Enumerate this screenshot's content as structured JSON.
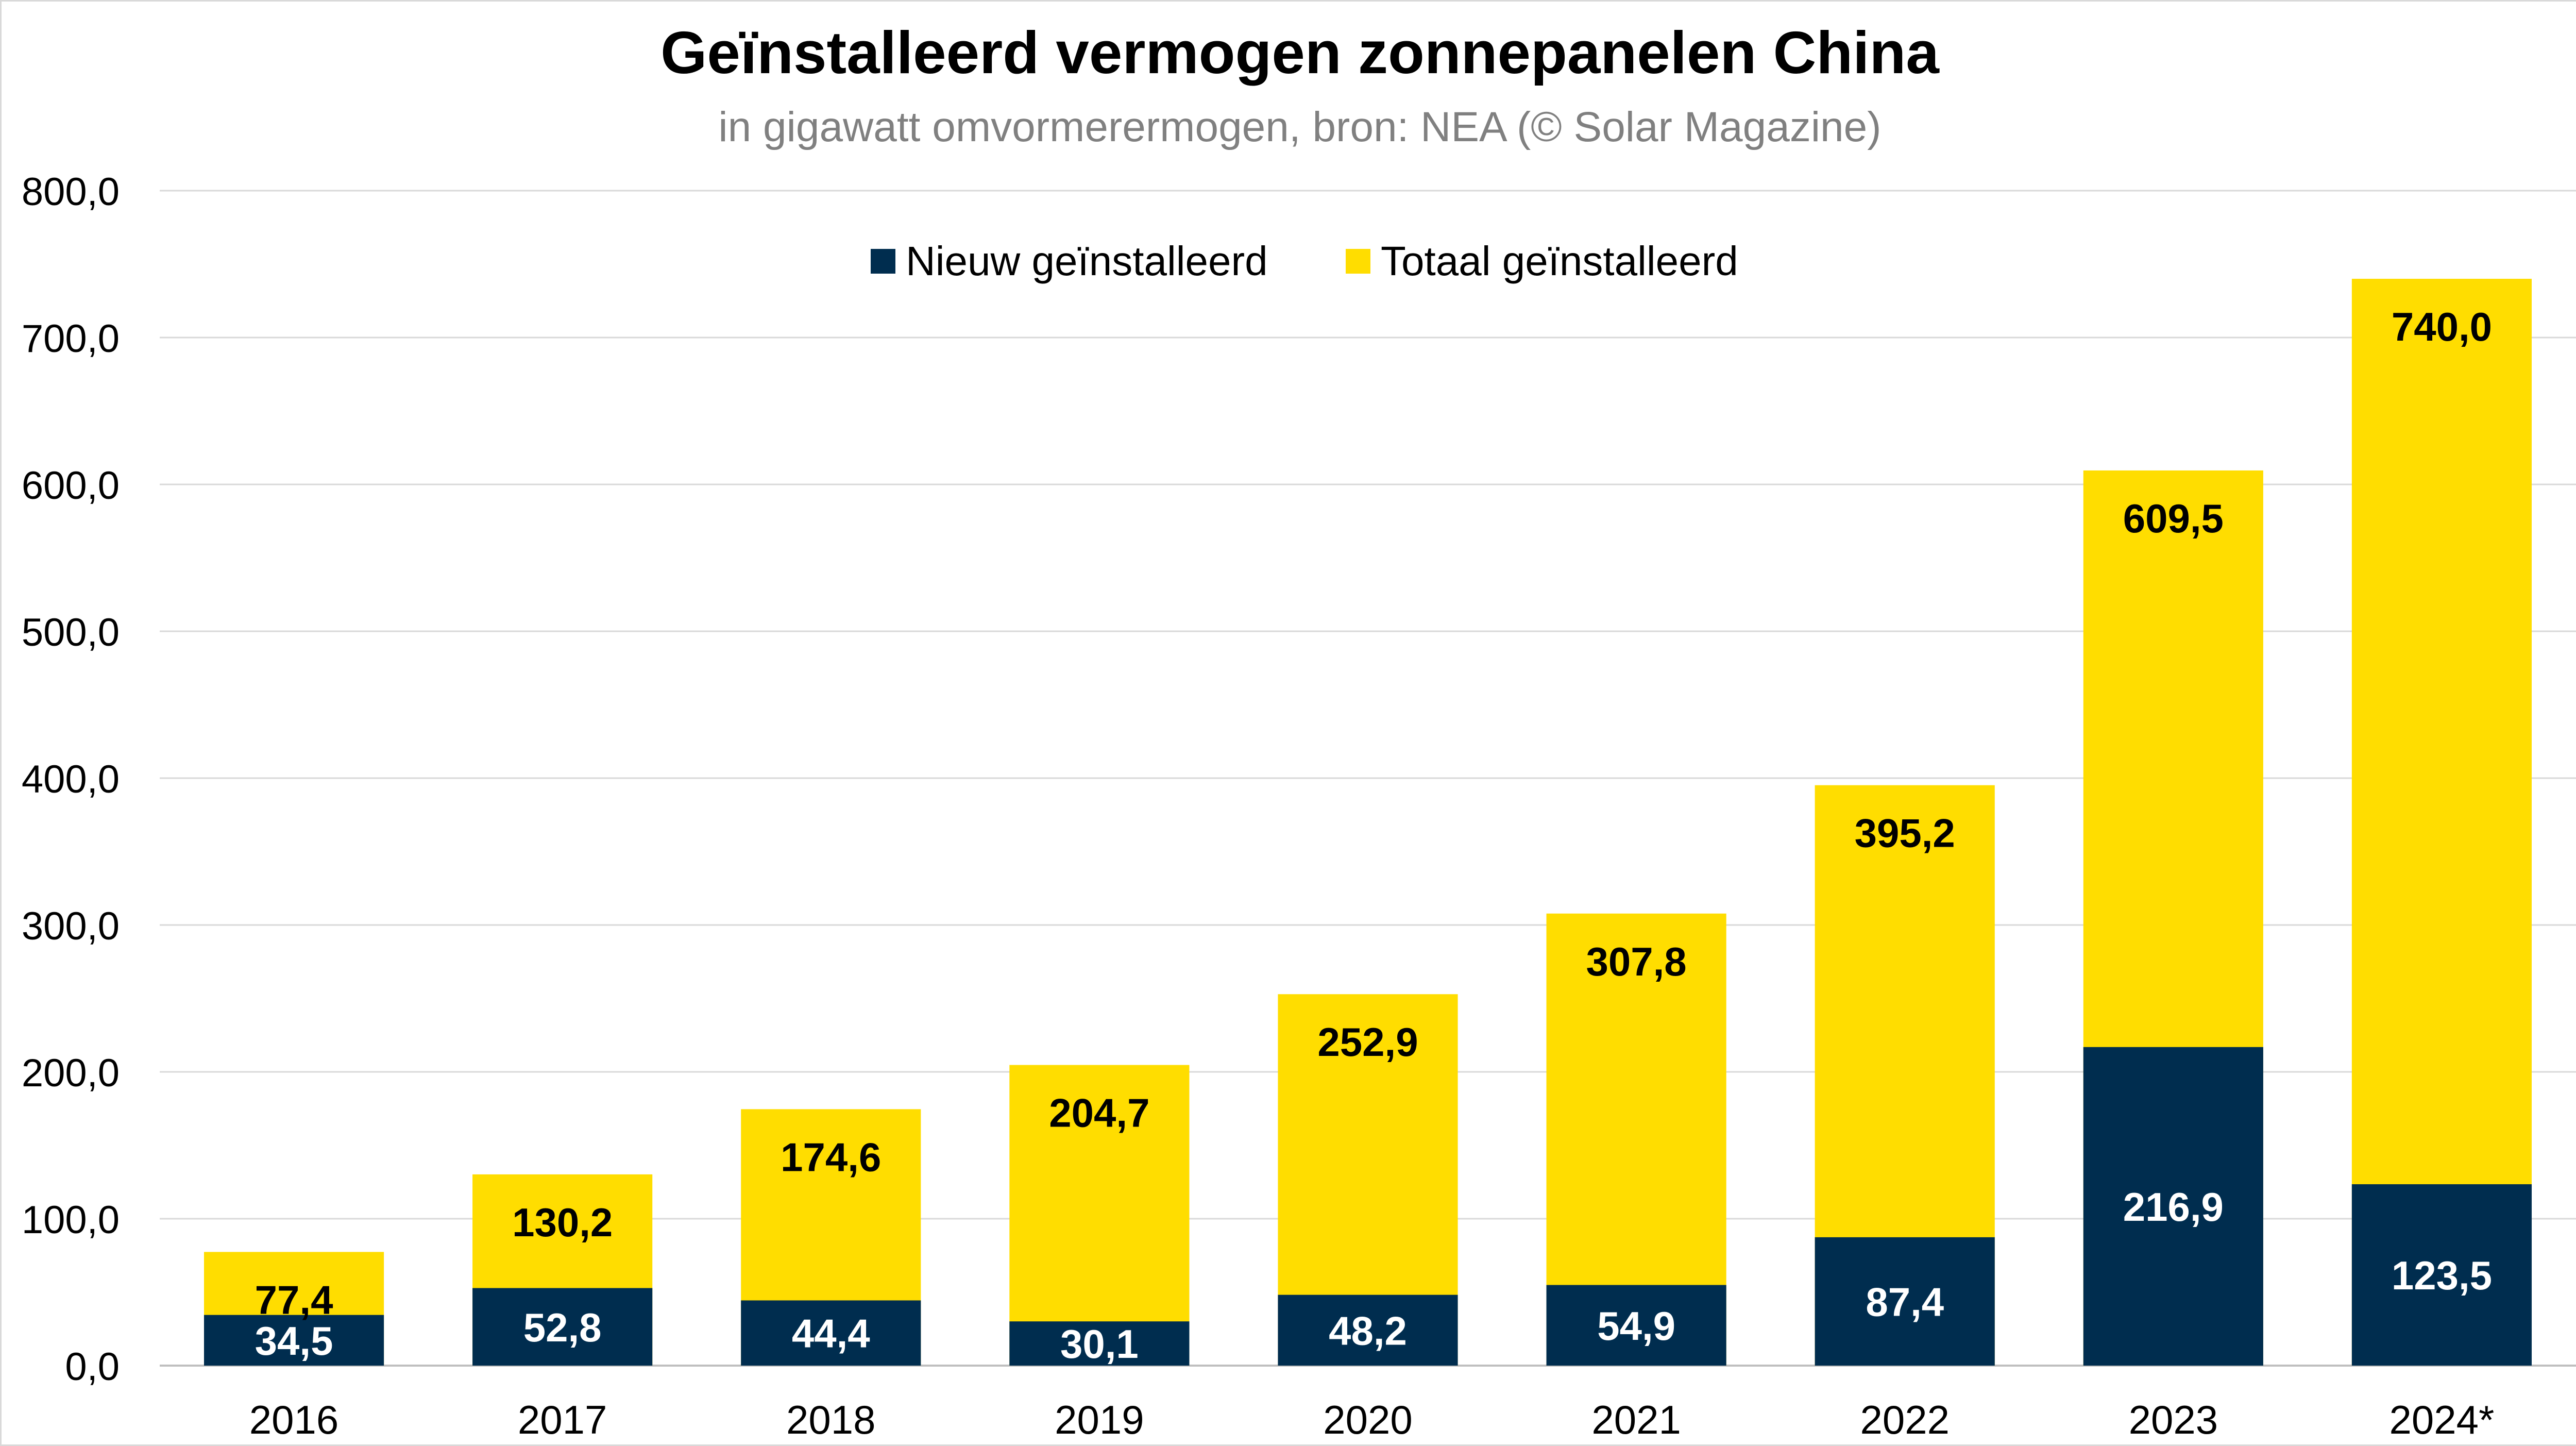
{
  "chart_data": {
    "type": "bar",
    "stacked": "overlay",
    "title": "Geïnstalleerd vermogen zonnepanelen China",
    "subtitle": "in gigawatt omvormerermogen, bron: NEA (© Solar Magazine)",
    "categories": [
      "2016",
      "2017",
      "2018",
      "2019",
      "2020",
      "2021",
      "2022",
      "2023",
      "2024*"
    ],
    "series": [
      {
        "name": "Nieuw geïnstalleerd",
        "color": "#002d4f",
        "label_color": "#ffffff",
        "values": [
          34.5,
          52.8,
          44.4,
          30.1,
          48.2,
          54.9,
          87.4,
          216.9,
          123.5
        ],
        "labels": [
          "34,5",
          "52,8",
          "44,4",
          "30,1",
          "48,2",
          "54,9",
          "87,4",
          "216,9",
          "123,5"
        ]
      },
      {
        "name": "Totaal geïnstalleerd",
        "color": "#ffdd00",
        "label_color": "#000000",
        "values": [
          77.4,
          130.2,
          174.6,
          204.7,
          252.9,
          307.8,
          395.2,
          609.5,
          740.0
        ],
        "labels": [
          "77,4",
          "130,2",
          "174,6",
          "204,7",
          "252,9",
          "307,8",
          "395,2",
          "609,5",
          "740,0"
        ]
      }
    ],
    "ylim": [
      0,
      800
    ],
    "yticks": [
      0,
      100,
      200,
      300,
      400,
      500,
      600,
      700,
      800
    ],
    "ytick_labels": [
      "0,0",
      "100,0",
      "200,0",
      "300,0",
      "400,0",
      "500,0",
      "600,0",
      "700,0",
      "800,0"
    ],
    "xlabel": "",
    "ylabel": "",
    "grid": true,
    "legend_position": "top-center"
  }
}
